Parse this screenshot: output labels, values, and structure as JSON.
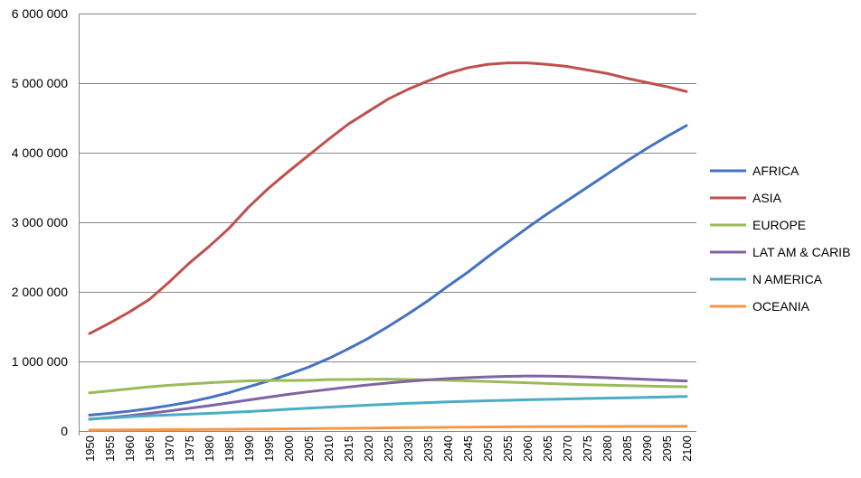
{
  "chart_data": {
    "type": "line",
    "title": "",
    "xlabel": "",
    "ylabel": "",
    "ylim": [
      0,
      6000000
    ],
    "yticks": [
      0,
      1000000,
      2000000,
      3000000,
      4000000,
      5000000,
      6000000
    ],
    "ytick_labels": [
      "0",
      "1 000 000",
      "2 000 000",
      "3 000 000",
      "4 000 000",
      "5 000 000",
      "6 000 000"
    ],
    "grid": true,
    "legend_position": "right",
    "x": [
      "1950",
      "1955",
      "1960",
      "1965",
      "1970",
      "1975",
      "1980",
      "1985",
      "1990",
      "1995",
      "2000",
      "2005",
      "2010",
      "2015",
      "2020",
      "2025",
      "2030",
      "2035",
      "2040",
      "2045",
      "2050",
      "2055",
      "2060",
      "2065",
      "2070",
      "2075",
      "2080",
      "2085",
      "2090",
      "2095",
      "2100"
    ],
    "series": [
      {
        "name": "AFRICA",
        "color": "#4472C4",
        "values": [
          229000,
          254000,
          285000,
          321000,
          366000,
          416000,
          478000,
          550000,
          635000,
          720000,
          814000,
          917000,
          1040000,
          1180000,
          1330000,
          1500000,
          1680000,
          1870000,
          2080000,
          2280000,
          2500000,
          2710000,
          2920000,
          3120000,
          3310000,
          3500000,
          3690000,
          3880000,
          4060000,
          4230000,
          4390000
        ]
      },
      {
        "name": "ASIA",
        "color": "#C0504D",
        "values": [
          1400000,
          1550000,
          1710000,
          1890000,
          2140000,
          2410000,
          2650000,
          2910000,
          3220000,
          3490000,
          3730000,
          3960000,
          4190000,
          4410000,
          4590000,
          4770000,
          4910000,
          5030000,
          5140000,
          5220000,
          5270000,
          5290000,
          5290000,
          5270000,
          5240000,
          5190000,
          5140000,
          5070000,
          5010000,
          4950000,
          4880000
        ]
      },
      {
        "name": "EUROPE",
        "color": "#9BBB59",
        "values": [
          549000,
          576000,
          605000,
          635000,
          657000,
          676000,
          693000,
          708000,
          721000,
          727000,
          726000,
          729000,
          738000,
          740000,
          744000,
          745000,
          741000,
          736000,
          729000,
          721000,
          712000,
          703000,
          693000,
          683000,
          674000,
          666000,
          659000,
          652000,
          646000,
          640000,
          636000
        ]
      },
      {
        "name": "LAT AM & CARIB",
        "color": "#8064A2",
        "values": [
          169000,
          193000,
          221000,
          254000,
          288000,
          326000,
          364000,
          404000,
          446000,
          487000,
          527000,
          564000,
          598000,
          631000,
          662000,
          690000,
          714000,
          735000,
          753000,
          767000,
          778000,
          786000,
          790000,
          789000,
          784000,
          776000,
          766000,
          754000,
          742000,
          730000,
          719000
        ]
      },
      {
        "name": "N AMERICA",
        "color": "#4BACC6",
        "values": [
          172000,
          187000,
          204000,
          219000,
          231000,
          242000,
          254000,
          267000,
          280000,
          296000,
          313000,
          328000,
          343000,
          357000,
          371000,
          384000,
          397000,
          408000,
          418000,
          427000,
          435000,
          442000,
          449000,
          455000,
          461000,
          467000,
          472000,
          478000,
          484000,
          490000,
          496000
        ]
      },
      {
        "name": "OCEANIA",
        "color": "#F79646",
        "values": [
          12700,
          14200,
          15800,
          17600,
          19700,
          21500,
          22900,
          24800,
          27000,
          29100,
          31100,
          33400,
          36700,
          39600,
          42700,
          45600,
          48400,
          51100,
          53600,
          55900,
          57800,
          59600,
          61200,
          62500,
          63500,
          64400,
          65200,
          65900,
          66500,
          67100,
          67600
        ]
      }
    ]
  }
}
